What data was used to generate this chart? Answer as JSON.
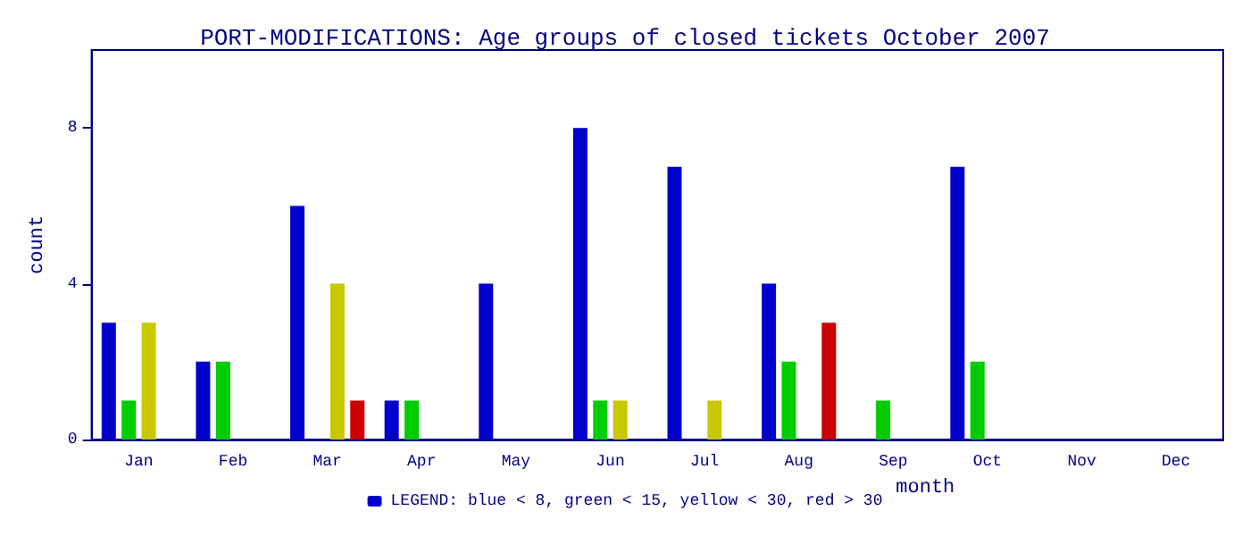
{
  "chart_data": {
    "type": "bar",
    "title": "PORT-MODIFICATIONS: Age groups of closed tickets October 2007",
    "xlabel": "month",
    "ylabel": "count",
    "categories": [
      "Jan",
      "Feb",
      "Mar",
      "Apr",
      "May",
      "Jun",
      "Jul",
      "Aug",
      "Sep",
      "Oct",
      "Nov",
      "Dec"
    ],
    "series": [
      {
        "name": "LEGEND: blue < 8, green < 15, yellow < 30, red > 30",
        "color": "#0000cc",
        "values": [
          3,
          2,
          6,
          1,
          4,
          8,
          7,
          4,
          0,
          7,
          0,
          0
        ]
      },
      {
        "color": "#00cc00",
        "values": [
          1,
          2,
          0,
          1,
          0,
          1,
          0,
          2,
          1,
          2,
          0,
          0
        ]
      },
      {
        "color": "#c8c800",
        "values": [
          3,
          0,
          4,
          0,
          0,
          1,
          1,
          0,
          0,
          0,
          0,
          0
        ]
      },
      {
        "color": "#cc0000",
        "values": [
          0,
          0,
          1,
          0,
          0,
          0,
          0,
          3,
          0,
          0,
          0,
          0
        ]
      }
    ],
    "ylim": [
      0,
      10
    ],
    "yticks": [
      0,
      4,
      8
    ],
    "grid": false,
    "legend": "bottom"
  }
}
